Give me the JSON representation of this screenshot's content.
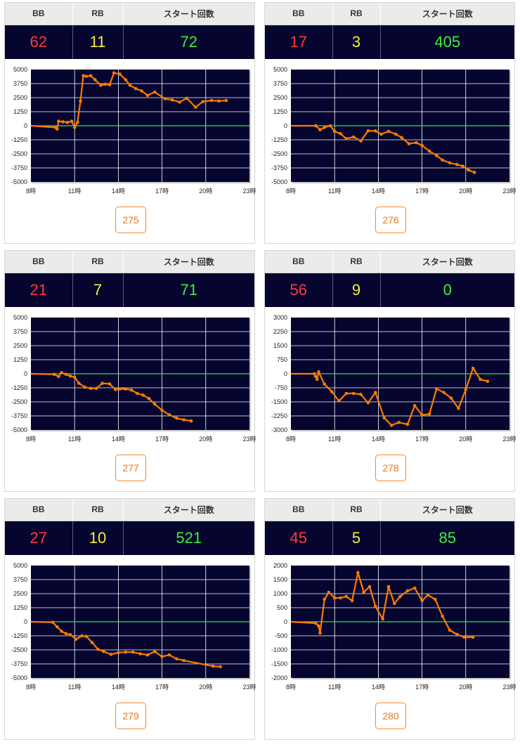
{
  "colors": {
    "header_bg": "#ebebeb",
    "value_bg": "#050530",
    "plot_bg": "#050530",
    "bb_color": "#ff3b3b",
    "rb_color": "#f5f03a",
    "start_color": "#3cf03c",
    "line_color": "#ff7a00",
    "zero_line_color": "#3ce03c",
    "button_color": "#e8781a"
  },
  "machines": [
    {
      "headers": {
        "bb": "BB",
        "rb": "RB",
        "start": "スタート回数"
      },
      "bb": "62",
      "rb": "11",
      "start": "72",
      "number": "275",
      "chart_data": {
        "type": "line",
        "x_ticks": [
          "8時",
          "11時",
          "14時",
          "17時",
          "20時",
          "23時"
        ],
        "y_ticks": [
          "5000",
          "3750",
          "2500",
          "1250",
          "0",
          "-1250",
          "-2500",
          "-3750",
          "-5000"
        ],
        "xlim": [
          8,
          23
        ],
        "ylim": [
          -5000,
          5000
        ],
        "grid": true,
        "series": [
          {
            "x": [
              8,
              9.7,
              9.8,
              9.9,
              10.2,
              10.5,
              10.8,
              11.0,
              11.2,
              11.4,
              11.6,
              11.8,
              12.1,
              12.4,
              12.8,
              13.1,
              13.4,
              13.7,
              14.1,
              14.5,
              14.8,
              15.2,
              15.6,
              16.0,
              16.5,
              17.2,
              17.7,
              18.2,
              18.7,
              19.3,
              19.8,
              20.4,
              20.9,
              21.4
            ],
            "y": [
              0,
              -150,
              -300,
              400,
              350,
              300,
              400,
              -150,
              300,
              2200,
              4450,
              4400,
              4450,
              4100,
              3600,
              3700,
              3650,
              4700,
              4600,
              4100,
              3600,
              3300,
              3100,
              2700,
              3000,
              2400,
              2300,
              2100,
              2450,
              1650,
              2150,
              2250,
              2200,
              2250
            ]
          }
        ]
      }
    },
    {
      "headers": {
        "bb": "BB",
        "rb": "RB",
        "start": "スタート回数"
      },
      "bb": "17",
      "rb": "3",
      "start": "405",
      "number": "276",
      "chart_data": {
        "type": "line",
        "x_ticks": [
          "8時",
          "11時",
          "14時",
          "17時",
          "20時",
          "23時"
        ],
        "y_ticks": [
          "5000",
          "3750",
          "2500",
          "1250",
          "0",
          "-1250",
          "-2500",
          "-3750",
          "-5000"
        ],
        "xlim": [
          8,
          23
        ],
        "ylim": [
          -5000,
          5000
        ],
        "grid": true,
        "series": [
          {
            "x": [
              8,
              9.7,
              10.0,
              10.3,
              10.7,
              11.0,
              11.4,
              11.8,
              12.3,
              12.8,
              13.3,
              13.8,
              14.2,
              14.7,
              15.2,
              15.6,
              16.1,
              16.6,
              17.0,
              17.5,
              18.0,
              18.4,
              18.9,
              19.4,
              19.8,
              20.2,
              20.6
            ],
            "y": [
              0,
              0,
              -350,
              -150,
              0,
              -500,
              -700,
              -1150,
              -1000,
              -1350,
              -450,
              -450,
              -750,
              -500,
              -750,
              -1050,
              -1600,
              -1500,
              -1750,
              -2250,
              -2650,
              -3050,
              -3300,
              -3450,
              -3600,
              -3950,
              -4150
            ]
          }
        ]
      }
    },
    {
      "headers": {
        "bb": "BB",
        "rb": "RB",
        "start": "スタート回数"
      },
      "bb": "21",
      "rb": "7",
      "start": "71",
      "number": "277",
      "chart_data": {
        "type": "line",
        "x_ticks": [
          "8時",
          "11時",
          "14時",
          "17時",
          "20時",
          "23時"
        ],
        "y_ticks": [
          "5000",
          "3750",
          "2500",
          "1250",
          "0",
          "-1250",
          "-2500",
          "-3750",
          "-5000"
        ],
        "xlim": [
          8,
          23
        ],
        "ylim": [
          -5000,
          5000
        ],
        "grid": true,
        "series": [
          {
            "x": [
              8,
              9.6,
              9.9,
              10.1,
              10.4,
              10.7,
              11.0,
              11.3,
              11.7,
              12.1,
              12.5,
              12.9,
              13.4,
              13.8,
              14.1,
              14.5,
              14.9,
              15.3,
              15.7,
              16.1,
              16.5,
              17.0,
              17.5,
              18.0,
              18.5,
              19.0
            ],
            "y": [
              0,
              -50,
              -250,
              100,
              -50,
              -200,
              -300,
              -850,
              -1200,
              -1300,
              -1300,
              -850,
              -900,
              -1400,
              -1350,
              -1350,
              -1450,
              -1750,
              -1900,
              -2200,
              -2700,
              -3250,
              -3650,
              -3950,
              -4100,
              -4200
            ]
          }
        ]
      }
    },
    {
      "headers": {
        "bb": "BB",
        "rb": "RB",
        "start": "スタート回数"
      },
      "bb": "56",
      "rb": "9",
      "start": "0",
      "number": "278",
      "chart_data": {
        "type": "line",
        "x_ticks": [
          "8時",
          "11時",
          "14時",
          "17時",
          "20時",
          "23時"
        ],
        "y_ticks": [
          "3000",
          "2250",
          "1500",
          "750",
          "0",
          "-750",
          "-1500",
          "-2250",
          "-3000"
        ],
        "xlim": [
          8,
          23
        ],
        "ylim": [
          -3000,
          3000
        ],
        "grid": true,
        "series": [
          {
            "x": [
              8,
              9.6,
              9.7,
              9.8,
              9.9,
              10.3,
              10.8,
              11.3,
              11.8,
              12.3,
              12.8,
              13.3,
              13.8,
              14.4,
              14.9,
              15.4,
              16.0,
              16.5,
              17.0,
              17.5,
              18.0,
              18.5,
              19.0,
              19.5,
              20.0,
              20.5,
              21.0,
              21.5
            ],
            "y": [
              0,
              0,
              -150,
              -300,
              100,
              -550,
              -950,
              -1450,
              -1050,
              -1050,
              -1100,
              -1550,
              -1000,
              -2350,
              -2750,
              -2600,
              -2700,
              -1700,
              -2200,
              -2150,
              -800,
              -1000,
              -1300,
              -1850,
              -850,
              300,
              -300,
              -400
            ]
          }
        ]
      }
    },
    {
      "headers": {
        "bb": "BB",
        "rb": "RB",
        "start": "スタート回数"
      },
      "bb": "27",
      "rb": "10",
      "start": "521",
      "number": "279",
      "chart_data": {
        "type": "line",
        "x_ticks": [
          "8時",
          "11時",
          "14時",
          "17時",
          "20時",
          "23時"
        ],
        "y_ticks": [
          "5000",
          "3750",
          "2500",
          "1250",
          "0",
          "-1250",
          "-2500",
          "-3750",
          "-5000"
        ],
        "xlim": [
          8,
          23
        ],
        "ylim": [
          -5000,
          5000
        ],
        "grid": true,
        "series": [
          {
            "x": [
              8,
              9.5,
              9.8,
              10.1,
              10.4,
              10.7,
              11.1,
              11.5,
              11.8,
              12.2,
              12.6,
              13.0,
              13.5,
              14.0,
              14.5,
              15.0,
              15.5,
              16.0,
              16.5,
              17.0,
              17.5,
              18.0,
              18.5,
              20.5,
              21.0
            ],
            "y": [
              0,
              -50,
              -450,
              -850,
              -1050,
              -1150,
              -1550,
              -1250,
              -1300,
              -1850,
              -2450,
              -2650,
              -2900,
              -2750,
              -2700,
              -2700,
              -2850,
              -2950,
              -2650,
              -3100,
              -2950,
              -3300,
              -3450,
              -3950,
              -4000
            ]
          }
        ]
      }
    },
    {
      "headers": {
        "bb": "BB",
        "rb": "RB",
        "start": "スタート回数"
      },
      "bb": "45",
      "rb": "5",
      "start": "85",
      "number": "280",
      "chart_data": {
        "type": "line",
        "x_ticks": [
          "8時",
          "11時",
          "14時",
          "17時",
          "20時",
          "23時"
        ],
        "y_ticks": [
          "2000",
          "1500",
          "1000",
          "500",
          "0",
          "-500",
          "-1000",
          "-1500",
          "-2000"
        ],
        "xlim": [
          8,
          23
        ],
        "ylim": [
          -2000,
          2000
        ],
        "grid": true,
        "series": [
          {
            "x": [
              8,
              9.7,
              9.9,
              10.0,
              10.3,
              10.6,
              11.0,
              11.4,
              11.8,
              12.2,
              12.6,
              13.0,
              13.4,
              13.8,
              14.3,
              14.7,
              15.1,
              15.5,
              16.0,
              16.5,
              17.0,
              17.4,
              17.9,
              18.4,
              18.9,
              19.4,
              19.9,
              20.5
            ],
            "y": [
              0,
              -50,
              -150,
              -400,
              800,
              1050,
              850,
              850,
              900,
              750,
              1750,
              1050,
              1250,
              550,
              100,
              1250,
              650,
              900,
              1100,
              1200,
              750,
              950,
              800,
              200,
              -300,
              -450,
              -550,
              -550
            ]
          }
        ]
      }
    }
  ]
}
